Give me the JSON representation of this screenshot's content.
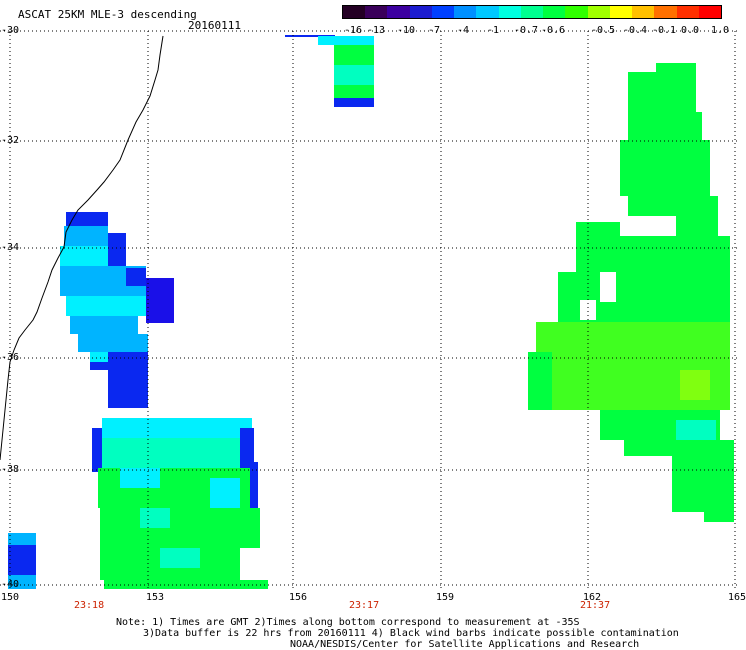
{
  "header": {
    "title": "ASCAT 25KM MLE-3 descending",
    "date": "20160111"
  },
  "colorbar": {
    "labels": [
      "-16",
      "-13",
      "-10",
      "-7",
      "-4",
      "-1",
      "-0.7",
      "-0.6",
      "-0.5",
      "-0.4",
      "-0.1",
      "0.0",
      "1.0"
    ],
    "colors": [
      "#240024",
      "#3a005a",
      "#3c00a0",
      "#1c1cd0",
      "#0040ff",
      "#0090ff",
      "#00c8ff",
      "#00ffe0",
      "#00ff90",
      "#00ff40",
      "#30ff00",
      "#a0ff00",
      "#ffff00",
      "#ffc000",
      "#ff7000",
      "#ff3000",
      "#ff0000"
    ]
  },
  "axes": {
    "lat_labels": [
      "-30",
      "-32",
      "-34",
      "-36",
      "-38",
      "-40"
    ],
    "lon_labels": [
      "150",
      "153",
      "156",
      "159",
      "162",
      "165"
    ]
  },
  "times": [
    "23:18",
    "23:17",
    "21:37"
  ],
  "notes": {
    "line1": "Note: 1) Times are GMT 2)Times along bottom correspond to measurement at -35S",
    "line2": "3)Data buffer is 22 hrs from 20160111 4) Black wind barbs indicate possible contamination",
    "line3": "NOAA/NESDIS/Center for Satellite Applications and Research"
  },
  "palette": {
    "blue": "#0a28f0",
    "deep_blue": "#1a10e8",
    "sky": "#00b4ff",
    "cyan": "#00f0ff",
    "aqua": "#00ffc0",
    "green": "#00ff40",
    "lime": "#40ff20",
    "yellow_green": "#80ff10"
  }
}
